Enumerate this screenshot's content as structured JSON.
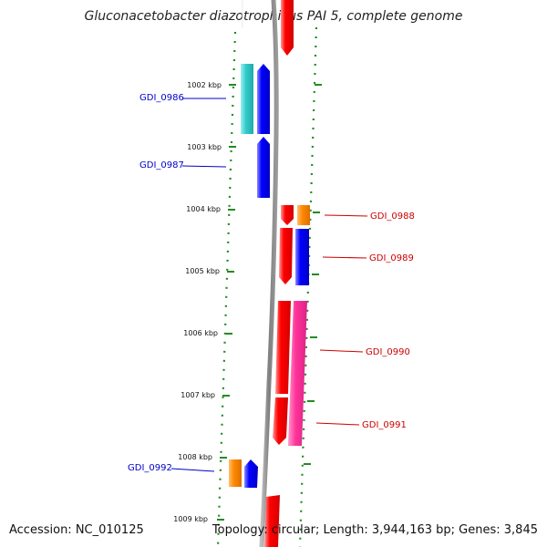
{
  "title": "Gluconacetobacter diazotrophicus PAI 5, complete genome",
  "accession": "Accession: NC_010125",
  "summary": "Topology: circular; Length: 3,944,163 bp; Genes: 3,845",
  "ruler_labels": [
    "1002 kbp",
    "1003 kbp",
    "1004 kbp",
    "1005 kbp",
    "1006 kbp",
    "1007 kbp",
    "1008 kbp",
    "1009 kbp"
  ],
  "genes": [
    {
      "label": "GDI_0986",
      "color": "#0000cc"
    },
    {
      "label": "GDI_0987",
      "color": "#0000cc"
    },
    {
      "label": "GDI_0988",
      "color": "#cc0000"
    },
    {
      "label": "GDI_0989",
      "color": "#cc0000"
    },
    {
      "label": "GDI_0990",
      "color": "#cc0000"
    },
    {
      "label": "GDI_0991",
      "color": "#cc0000"
    },
    {
      "label": "GDI_0992",
      "color": "#0000cc"
    }
  ],
  "colors": {
    "backbone": "#7f7f7f",
    "tick_dots": "#228b22",
    "forward_gene": "#ff0000",
    "reverse_gene": "#0000ff",
    "cyan_feature": "#33cccc",
    "orange_feature": "#ff8800",
    "pink_feature": "#ff3399"
  }
}
